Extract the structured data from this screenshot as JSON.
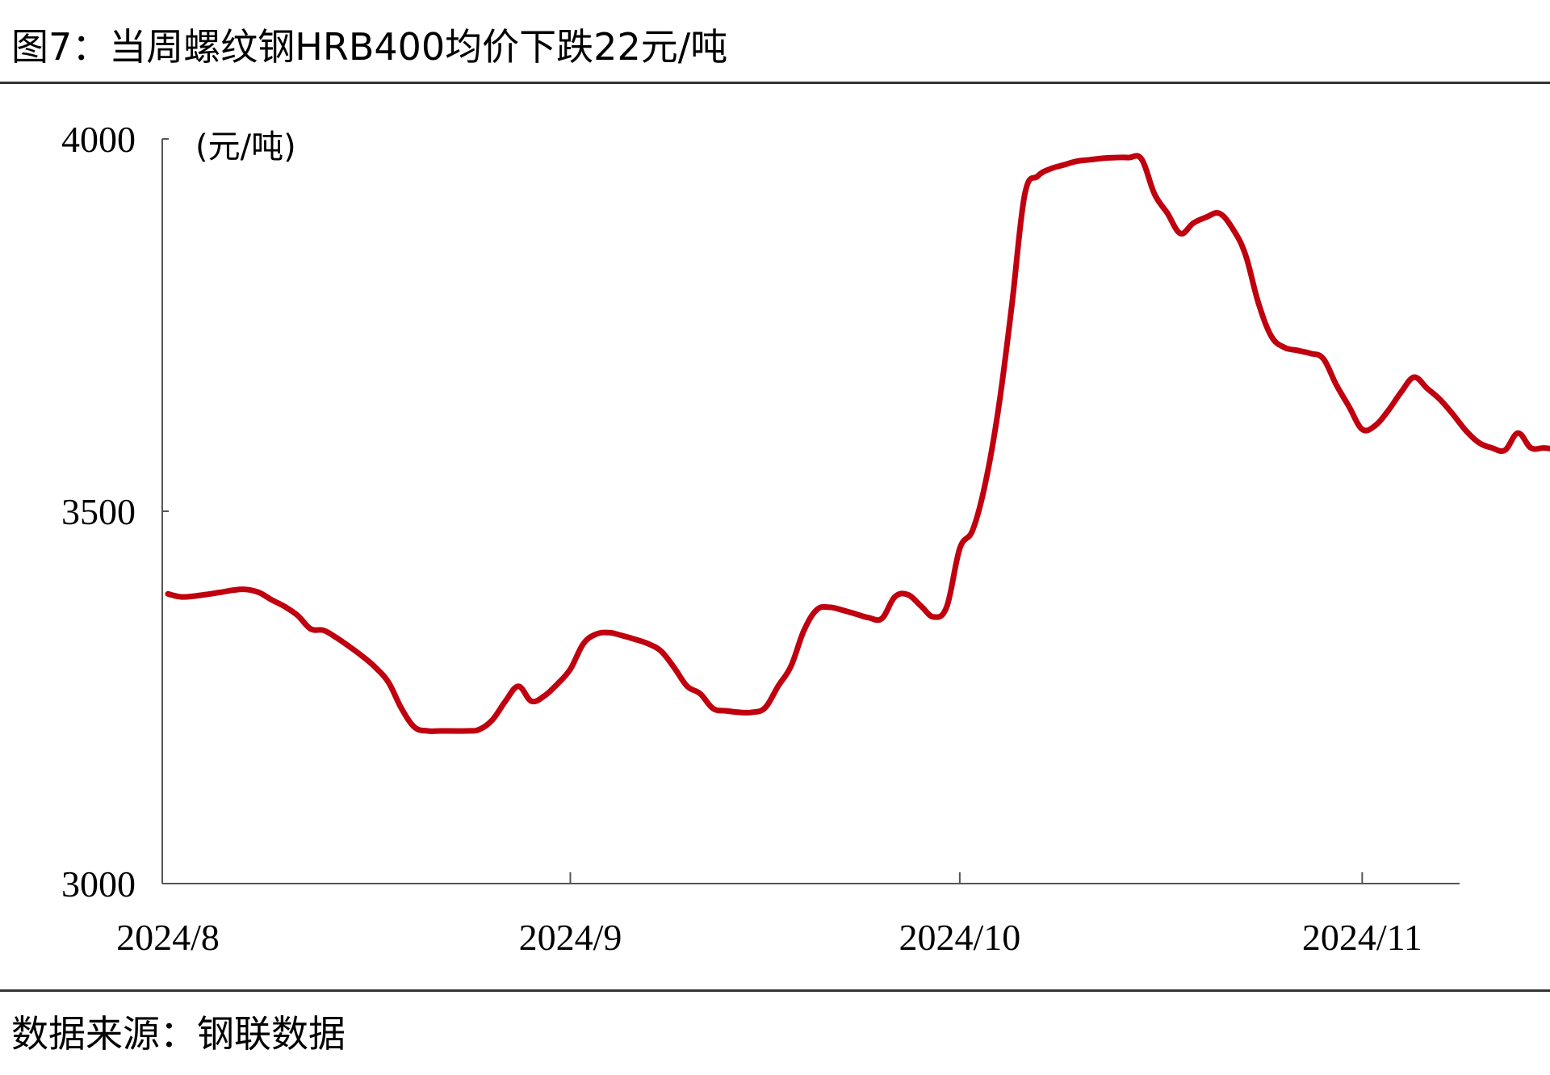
{
  "title": "图7：当周螺纹钢HRB400均价下跌22元/吨",
  "source": "数据来源：钢联数据",
  "colors": {
    "line": "#C0000E",
    "axis": "#555555"
  },
  "chart_data": {
    "type": "line",
    "unit": "(元/吨)",
    "ylim": [
      3000,
      4000
    ],
    "yticks": [
      3000,
      3500,
      4000
    ],
    "xlim": [
      "2024-08-01",
      "2024-11-10"
    ],
    "xticks": [
      {
        "date": "2024-08-01",
        "label": "2024/8"
      },
      {
        "date": "2024-09-01",
        "label": "2024/9"
      },
      {
        "date": "2024-10-01",
        "label": "2024/10"
      },
      {
        "date": "2024-11-01",
        "label": "2024/11"
      }
    ],
    "grid": false,
    "legend": "none",
    "series": [
      {
        "points": [
          [
            "2024-08-01",
            3389
          ],
          [
            "2024-08-02",
            3385
          ],
          [
            "2024-08-03",
            3386
          ],
          [
            "2024-08-05",
            3391
          ],
          [
            "2024-08-06",
            3394
          ],
          [
            "2024-08-07",
            3395
          ],
          [
            "2024-08-08",
            3391
          ],
          [
            "2024-08-09",
            3381
          ],
          [
            "2024-08-10",
            3372
          ],
          [
            "2024-08-11",
            3360
          ],
          [
            "2024-08-12",
            3342
          ],
          [
            "2024-08-13",
            3340
          ],
          [
            "2024-08-14",
            3330
          ],
          [
            "2024-08-15",
            3318
          ],
          [
            "2024-08-16",
            3305
          ],
          [
            "2024-08-17",
            3290
          ],
          [
            "2024-08-18",
            3270
          ],
          [
            "2024-08-19",
            3235
          ],
          [
            "2024-08-20",
            3210
          ],
          [
            "2024-08-21",
            3205
          ],
          [
            "2024-08-22",
            3205
          ],
          [
            "2024-08-24",
            3205
          ],
          [
            "2024-08-25",
            3207
          ],
          [
            "2024-08-26",
            3220
          ],
          [
            "2024-08-27",
            3245
          ],
          [
            "2024-08-28",
            3265
          ],
          [
            "2024-08-29",
            3245
          ],
          [
            "2024-08-30",
            3252
          ],
          [
            "2024-08-31",
            3268
          ],
          [
            "2024-09-01",
            3288
          ],
          [
            "2024-09-02",
            3322
          ],
          [
            "2024-09-03",
            3335
          ],
          [
            "2024-09-04",
            3337
          ],
          [
            "2024-09-05",
            3333
          ],
          [
            "2024-09-06",
            3328
          ],
          [
            "2024-09-07",
            3322
          ],
          [
            "2024-09-08",
            3312
          ],
          [
            "2024-09-09",
            3290
          ],
          [
            "2024-09-10",
            3265
          ],
          [
            "2024-09-11",
            3255
          ],
          [
            "2024-09-12",
            3235
          ],
          [
            "2024-09-13",
            3232
          ],
          [
            "2024-09-14",
            3230
          ],
          [
            "2024-09-15",
            3230
          ],
          [
            "2024-09-16",
            3236
          ],
          [
            "2024-09-17",
            3265
          ],
          [
            "2024-09-18",
            3292
          ],
          [
            "2024-09-19",
            3340
          ],
          [
            "2024-09-20",
            3368
          ],
          [
            "2024-09-21",
            3371
          ],
          [
            "2024-09-22",
            3367
          ],
          [
            "2024-09-23",
            3362
          ],
          [
            "2024-09-24",
            3357
          ],
          [
            "2024-09-25",
            3356
          ],
          [
            "2024-09-26",
            3385
          ],
          [
            "2024-09-27",
            3388
          ],
          [
            "2024-09-28",
            3373
          ],
          [
            "2024-09-29",
            3358
          ],
          [
            "2024-09-30",
            3372
          ],
          [
            "2024-10-01",
            3450
          ],
          [
            "2024-10-02",
            3475
          ],
          [
            "2024-10-03",
            3540
          ],
          [
            "2024-10-04",
            3640
          ],
          [
            "2024-10-05",
            3775
          ],
          [
            "2024-10-06",
            3925
          ],
          [
            "2024-10-07",
            3950
          ],
          [
            "2024-10-08",
            3960
          ],
          [
            "2024-10-09",
            3965
          ],
          [
            "2024-10-10",
            3970
          ],
          [
            "2024-10-11",
            3972
          ],
          [
            "2024-10-12",
            3974
          ],
          [
            "2024-10-13",
            3975
          ],
          [
            "2024-10-14",
            3975
          ],
          [
            "2024-10-15",
            3973
          ],
          [
            "2024-10-16",
            3926
          ],
          [
            "2024-10-17",
            3900
          ],
          [
            "2024-10-18",
            3873
          ],
          [
            "2024-10-19",
            3887
          ],
          [
            "2024-10-20",
            3895
          ],
          [
            "2024-10-21",
            3900
          ],
          [
            "2024-10-22",
            3880
          ],
          [
            "2024-10-23",
            3845
          ],
          [
            "2024-10-24",
            3780
          ],
          [
            "2024-10-25",
            3735
          ],
          [
            "2024-10-26",
            3720
          ],
          [
            "2024-10-27",
            3716
          ],
          [
            "2024-10-28",
            3712
          ],
          [
            "2024-10-29",
            3705
          ],
          [
            "2024-10-30",
            3670
          ],
          [
            "2024-10-31",
            3640
          ],
          [
            "2024-11-01",
            3610
          ],
          [
            "2024-11-02",
            3615
          ],
          [
            "2024-11-03",
            3635
          ],
          [
            "2024-11-04",
            3660
          ],
          [
            "2024-11-05",
            3680
          ],
          [
            "2024-11-06",
            3665
          ],
          [
            "2024-11-07",
            3650
          ],
          [
            "2024-11-08",
            3630
          ],
          [
            "2024-11-09",
            3608
          ],
          [
            "2024-11-10",
            3592
          ],
          [
            "2024-11-11",
            3585
          ],
          [
            "2024-11-12",
            3582
          ],
          [
            "2024-11-13",
            3605
          ],
          [
            "2024-11-14",
            3585
          ],
          [
            "2024-11-15",
            3585
          ],
          [
            "2024-11-16",
            3583
          ]
        ]
      }
    ]
  }
}
